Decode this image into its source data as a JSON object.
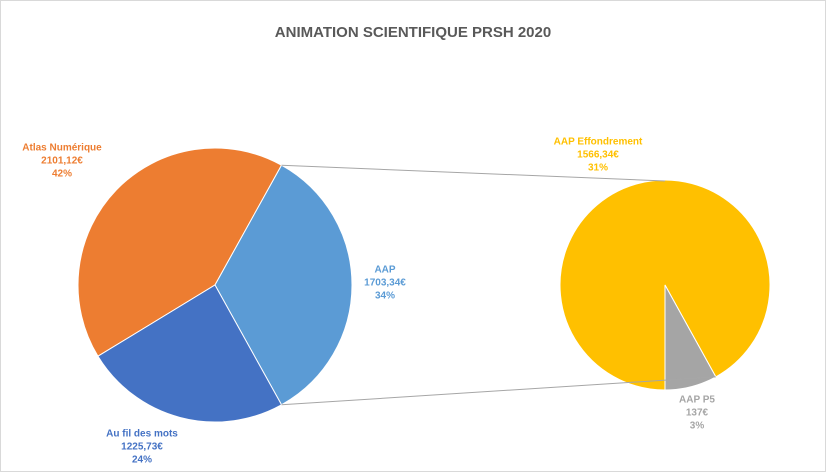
{
  "chart_data": {
    "type": "pie-of-pie",
    "title": "ANIMATION SCIENTIFIQUE PRSH 2020",
    "categories": [
      "Atlas Numérique",
      "AAP",
      "Au fil des mots"
    ],
    "values": [
      2101.12,
      1703.34,
      1225.73
    ],
    "value_labels": [
      "2101,12€",
      "1703,34€",
      "1225,73€"
    ],
    "percent_labels": [
      "42%",
      "34%",
      "24%"
    ],
    "colors": [
      "#ed7d31",
      "#5b9bd5",
      "#4472c4"
    ],
    "secondary": {
      "categories": [
        "AAP Effondrement",
        "AAP P5"
      ],
      "values": [
        1566.34,
        137
      ],
      "value_labels": [
        "1566,34€",
        "137€"
      ],
      "percent_labels": [
        "31%",
        "3%"
      ],
      "colors": [
        "#ffc000",
        "#a5a5a5"
      ]
    }
  }
}
